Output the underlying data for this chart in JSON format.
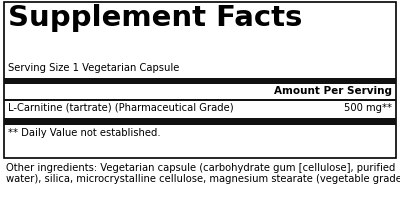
{
  "title": "Supplement Facts",
  "serving_size": "Serving Size 1 Vegetarian Capsule",
  "amount_per_serving": "Amount Per Serving",
  "ingredient_name": "L-Carnitine (tartrate) (Pharmaceutical Grade)",
  "ingredient_amount": "500 mg**",
  "daily_value_note": "** Daily Value not established.",
  "other_ingredients_line1": "Other ingredients: Vegetarian capsule (carbohydrate gum [cellulose], purified",
  "other_ingredients_line2": "water), silica, microcrystalline cellulose, magnesium stearate (vegetable grade).",
  "bg_color": "#ffffff",
  "border_color": "#000000",
  "bar_color": "#111111",
  "text_color": "#000000",
  "title_fontsize": 21,
  "body_fontsize": 7.2,
  "amount_label_fontsize": 7.5,
  "other_fontsize": 7.2,
  "fig_width": 4.0,
  "fig_height": 2.0,
  "dpi": 100
}
